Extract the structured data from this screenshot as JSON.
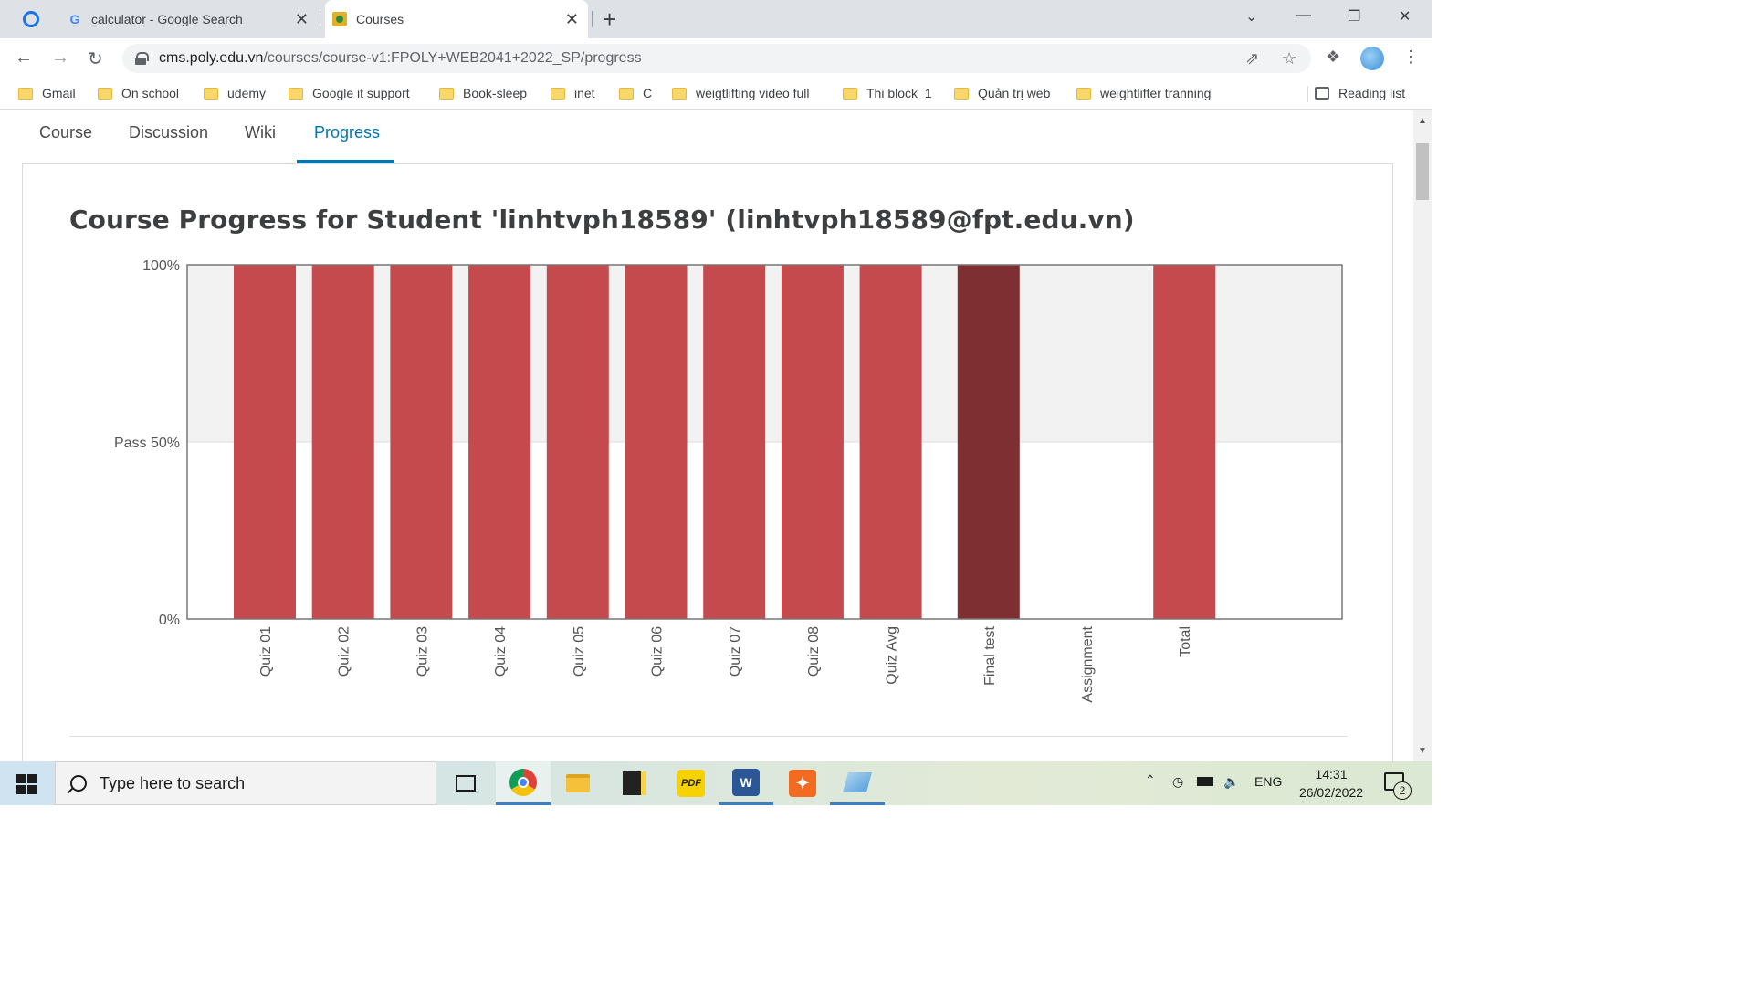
{
  "browser": {
    "tabs": [
      {
        "title": "calculator - Google Search",
        "icon": "google-icon"
      },
      {
        "title": "Courses",
        "icon": "courses-icon"
      }
    ],
    "url_host": "cms.poly.edu.vn",
    "url_path": "/courses/course-v1:FPOLY+WEB2041+2022_SP/progress"
  },
  "bookmarks": [
    "Gmail",
    "On school",
    "udemy",
    "Google it support",
    "Book-sleep",
    "inet",
    "C",
    "weigtlifting video full",
    "Thi block_1",
    "Quản trị web",
    "weightlifter tranning"
  ],
  "reading_list": "Reading list",
  "course_nav": {
    "items": [
      "Course",
      "Discussion",
      "Wiki",
      "Progress"
    ],
    "active": "Progress"
  },
  "page_title": "Course Progress for Student 'linhtvph18589' (linhtvph18589@fpt.edu.vn)",
  "chart_data": {
    "type": "bar",
    "categories": [
      "Quiz 01",
      "Quiz 02",
      "Quiz 03",
      "Quiz 04",
      "Quiz 05",
      "Quiz 06",
      "Quiz 07",
      "Quiz 08",
      "Quiz Avg",
      "Final test",
      "Assignment",
      "Total"
    ],
    "values": [
      100,
      100,
      100,
      100,
      100,
      100,
      100,
      100,
      100,
      100,
      0,
      100
    ],
    "colors": [
      "#c44a4d",
      "#c44a4d",
      "#c44a4d",
      "#c44a4d",
      "#c44a4d",
      "#c44a4d",
      "#c44a4d",
      "#c44a4d",
      "#c44a4d",
      "#7e2f31",
      "#c44a4d",
      "#c44a4d"
    ],
    "y_ticks": [
      {
        "value": 100,
        "label": "100%"
      },
      {
        "value": 50,
        "label": "Pass 50%"
      },
      {
        "value": 0,
        "label": "0%"
      }
    ],
    "ylim": [
      0,
      100
    ],
    "pass_band_color": "#f2f2f2",
    "grid": false
  },
  "taskbar": {
    "search_placeholder": "Type here to search",
    "language": "ENG",
    "time": "14:31",
    "date": "26/02/2022",
    "notifications": "2"
  }
}
